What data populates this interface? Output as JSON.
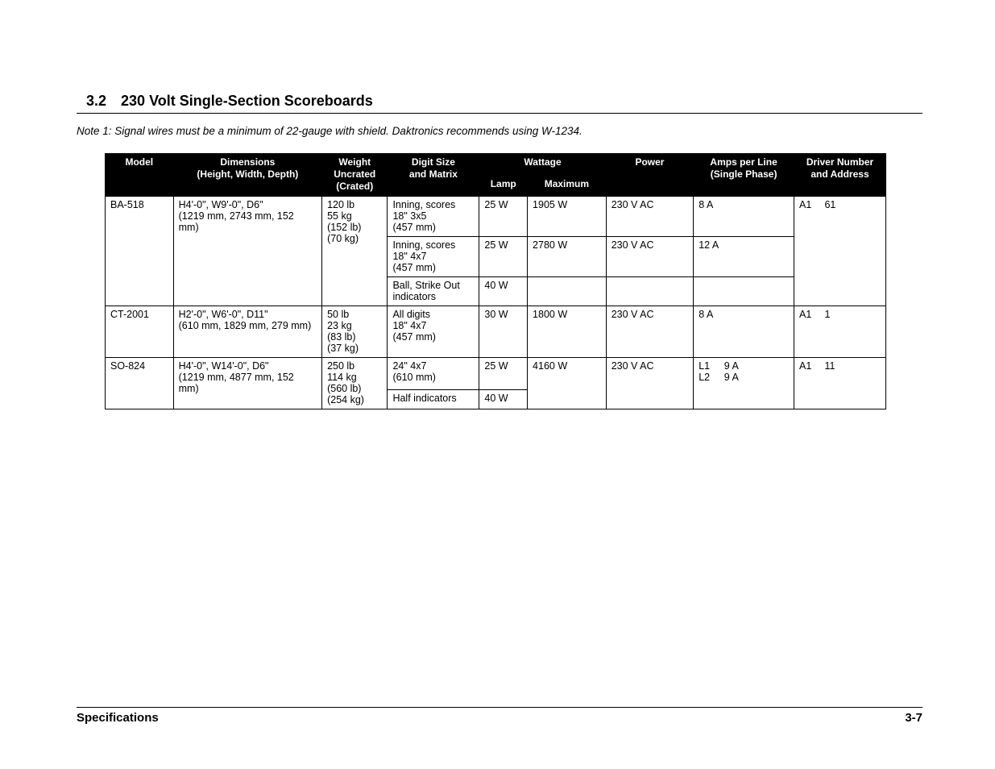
{
  "section": {
    "number": "3.2",
    "title": "230 Volt Single-Section Scoreboards"
  },
  "note": "Note 1: Signal wires must be a minimum of 22-gauge with shield. Daktronics recommends using W-1234.",
  "table": {
    "headers": {
      "model": "Model",
      "dimensions_l1": "Dimensions",
      "dimensions_l2": "(Height, Width, Depth)",
      "weight_l1": "Weight",
      "weight_l2": "Uncrated",
      "weight_l3": "(Crated)",
      "digit_l1": "Digit Size",
      "digit_l2": "and Matrix",
      "wattage": "Wattage",
      "lamp": "Lamp",
      "maximum": "Maximum",
      "power": "Power",
      "amps_l1": "Amps per Line",
      "amps_l2": "(Single Phase)",
      "driver_l1": "Driver Number",
      "driver_l2": "and Address"
    },
    "rows": {
      "ba518": {
        "model": "BA-518",
        "dims_l1": "H4'-0\", W9'-0\", D6\"",
        "dims_l2": "(1219 mm, 2743 mm, 152 mm)",
        "weight_l1": "120 lb",
        "weight_l2": "55 kg",
        "weight_l3": "(152 lb)",
        "weight_l4": "(70 kg)",
        "r1_digit_l1": "Inning, scores",
        "r1_digit_l2": "18\" 3x5",
        "r1_digit_l3": "(457 mm)",
        "r1_lamp": "25 W",
        "r1_max": "1905 W",
        "r1_power": "230 V AC",
        "r1_amps": "8 A",
        "r2_digit_l1": "Inning, scores",
        "r2_digit_l2": "18\" 4x7",
        "r2_digit_l3": "(457 mm)",
        "r2_lamp": "25 W",
        "r2_max": "2780 W",
        "r2_power": "230 V AC",
        "r2_amps": "12 A",
        "r3_digit": "Ball, Strike Out indicators",
        "r3_lamp": "40 W",
        "driver_a": "A1",
        "driver_n": "61"
      },
      "ct2001": {
        "model": "CT-2001",
        "dims_l1": "H2'-0\", W6'-0\", D11\"",
        "dims_l2": "(610 mm, 1829 mm, 279 mm)",
        "weight_l1": "50 lb",
        "weight_l2": "23 kg",
        "weight_l3": "(83 lb)",
        "weight_l4": "(37 kg)",
        "digit_l1": "All digits",
        "digit_l2": "18\" 4x7",
        "digit_l3": "(457 mm)",
        "lamp": "30 W",
        "max": "1800 W",
        "power": "230 V AC",
        "amps": "8 A",
        "driver_a": "A1",
        "driver_n": "1"
      },
      "so824": {
        "model": "SO-824",
        "dims_l1": "H4'-0\", W14'-0\", D6\"",
        "dims_l2": "(1219 mm, 4877 mm, 152 mm)",
        "weight_l1": "250 lb",
        "weight_l2": "114 kg",
        "weight_l3": "(560 lb)",
        "weight_l4": "(254 kg)",
        "r1_digit_l1": "24\" 4x7",
        "r1_digit_l2": "(610 mm)",
        "r1_lamp": "25 W",
        "r2_digit": "Half indicators",
        "r2_lamp": "40 W",
        "max": "4160 W",
        "power": "230 V AC",
        "amps_l1_lbl": "L1",
        "amps_l1_val": "9 A",
        "amps_l2_lbl": "L2",
        "amps_l2_val": "9 A",
        "driver_a": "A1",
        "driver_n": "11"
      }
    }
  },
  "footer": {
    "left": "Specifications",
    "right": "3-7"
  }
}
